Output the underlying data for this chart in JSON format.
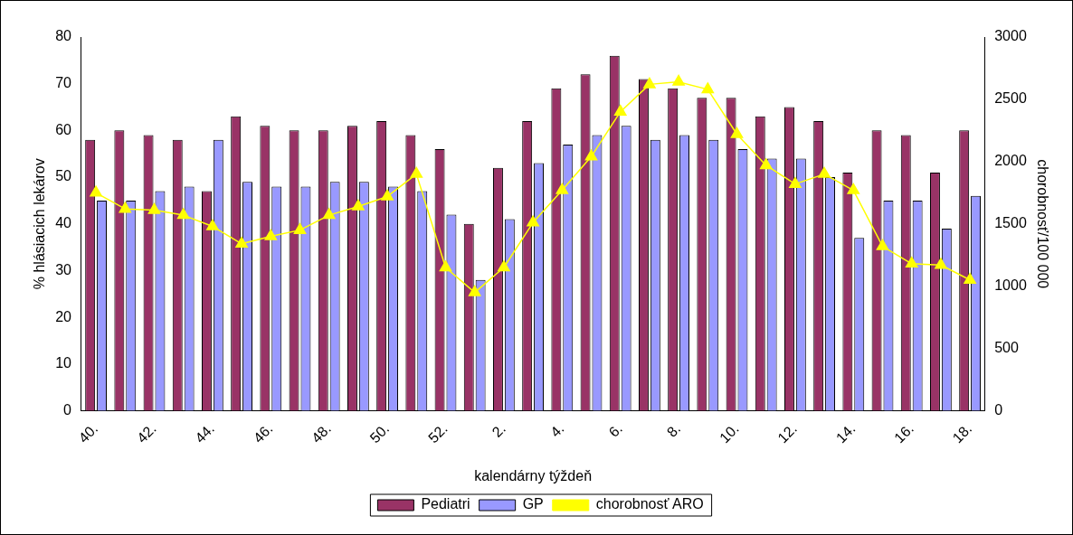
{
  "chart_data": {
    "type": "bar",
    "xlabel": "kalendárny týždeň",
    "ylabel": "% hlásiacich lekárov",
    "y2label": "chorobnosť/100 000",
    "categories": [
      "40.",
      null,
      "42.",
      null,
      "44.",
      null,
      "46.",
      null,
      "48.",
      null,
      "50.",
      null,
      "52.",
      null,
      "2.",
      null,
      "4.",
      null,
      "6.",
      null,
      "8.",
      null,
      "10.",
      null,
      "12.",
      null,
      "14.",
      null,
      "16.",
      null,
      "18."
    ],
    "series": [
      {
        "name": "Pediatri",
        "color": "#993366",
        "values": [
          58,
          60,
          59,
          58,
          47,
          63,
          61,
          60,
          60,
          61,
          62,
          59,
          56,
          40,
          52,
          62,
          69,
          72,
          76,
          71,
          69,
          67,
          67,
          63,
          65,
          62,
          51,
          60,
          59,
          51,
          60
        ]
      },
      {
        "name": "GP",
        "color": "#9999ff",
        "values": [
          45,
          45,
          47,
          48,
          58,
          49,
          48,
          48,
          49,
          49,
          48,
          47,
          42,
          28,
          41,
          53,
          57,
          59,
          61,
          58,
          59,
          58,
          56,
          54,
          54,
          50,
          37,
          45,
          45,
          39,
          46
        ]
      },
      {
        "name": "chorobnosť ARO",
        "type": "line",
        "axis": "y2",
        "color": "#ffff00",
        "marker": "triangle",
        "values": [
          1750,
          1620,
          1610,
          1570,
          1480,
          1340,
          1400,
          1450,
          1570,
          1640,
          1720,
          1900,
          1150,
          950,
          1150,
          1510,
          1770,
          2040,
          2400,
          2620,
          2640,
          2580,
          2220,
          1970,
          1820,
          1900,
          1770,
          1320,
          1180,
          1170,
          1050
        ]
      }
    ],
    "ylim": [
      0,
      80
    ],
    "yticks": [
      0,
      10,
      20,
      30,
      40,
      50,
      60,
      70,
      80
    ],
    "y2lim": [
      0,
      3000
    ],
    "y2ticks": [
      0,
      500,
      1000,
      1500,
      2000,
      2500,
      3000
    ],
    "grid": false,
    "legend": "bottom"
  }
}
